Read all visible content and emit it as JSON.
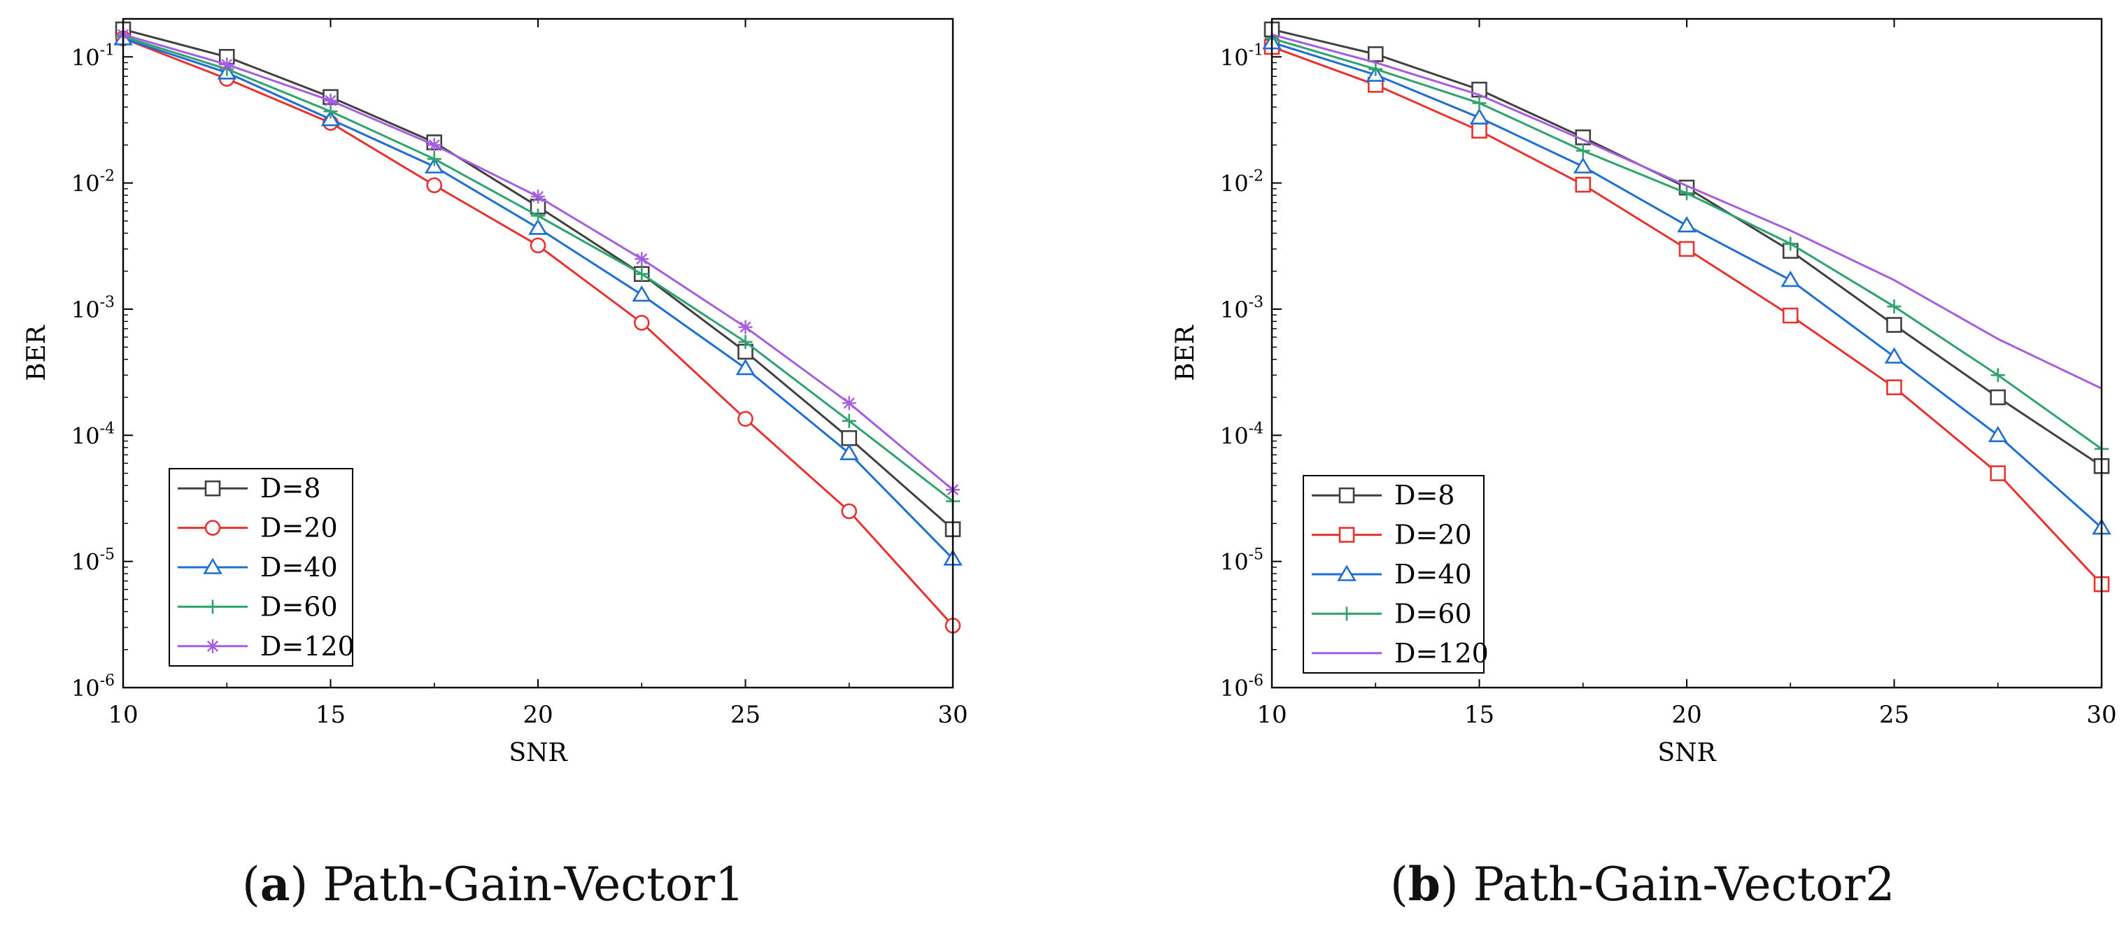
{
  "captions": [
    {
      "open": "(",
      "letter": "a",
      "close": ")",
      "text": " Path-Gain-Vector1"
    },
    {
      "open": "(",
      "letter": "b",
      "close": ")",
      "text": " Path-Gain-Vector2"
    }
  ],
  "colors": {
    "D8": "#404040",
    "D20": "#e8322e",
    "D40": "#1f6fd0",
    "D60": "#2ea36c",
    "D120": "#a55ee0"
  },
  "chart_data": [
    {
      "type": "line",
      "title": "(a) Path-Gain-Vector1",
      "xlabel": "SNR",
      "ylabel": "BER",
      "xlim": [
        10,
        30
      ],
      "ylim": [
        1e-06,
        0.2
      ],
      "yscale": "log",
      "xticks": [
        "10",
        "15",
        "20",
        "25",
        "30"
      ],
      "yticks": [
        {
          "base": "10",
          "exp": "-1"
        },
        {
          "base": "10",
          "exp": "-2"
        },
        {
          "base": "10",
          "exp": "-3"
        },
        {
          "base": "10",
          "exp": "-4"
        },
        {
          "base": "10",
          "exp": "-5"
        },
        {
          "base": "10",
          "exp": "-6"
        }
      ],
      "legend_position": "bottom-left",
      "x": [
        10,
        12.5,
        15,
        17.5,
        20,
        22.5,
        25,
        27.5,
        30
      ],
      "series": [
        {
          "name": "D=8",
          "color": "#404040",
          "marker": "square",
          "values": [
            0.165,
            0.1,
            0.048,
            0.021,
            0.0065,
            0.0019,
            0.00046,
            9.5e-05,
            1.8e-05
          ]
        },
        {
          "name": "D=20",
          "color": "#e8322e",
          "marker": "circle",
          "values": [
            0.14,
            0.067,
            0.03,
            0.0096,
            0.0032,
            0.00078,
            0.000135,
            2.5e-05,
            3.1e-06
          ]
        },
        {
          "name": "D=40",
          "color": "#1f6fd0",
          "marker": "triangle",
          "values": [
            0.14,
            0.075,
            0.032,
            0.0135,
            0.0044,
            0.0013,
            0.00034,
            7.2e-05,
            1.05e-05
          ]
        },
        {
          "name": "D=60",
          "color": "#2ea36c",
          "marker": "plus",
          "values": [
            0.145,
            0.08,
            0.037,
            0.0155,
            0.0055,
            0.0019,
            0.00055,
            0.00013,
            3e-05
          ]
        },
        {
          "name": "D=120",
          "color": "#a55ee0",
          "marker": "star",
          "values": [
            0.15,
            0.087,
            0.045,
            0.02,
            0.0078,
            0.0025,
            0.00072,
            0.00018,
            3.7e-05
          ]
        }
      ]
    },
    {
      "type": "line",
      "title": "(b) Path-Gain-Vector2",
      "xlabel": "SNR",
      "ylabel": "BER",
      "xlim": [
        10,
        30
      ],
      "ylim": [
        1e-06,
        0.2
      ],
      "yscale": "log",
      "xticks": [
        "10",
        "15",
        "20",
        "25",
        "30"
      ],
      "yticks": [
        {
          "base": "10",
          "exp": "-1"
        },
        {
          "base": "10",
          "exp": "-2"
        },
        {
          "base": "10",
          "exp": "-3"
        },
        {
          "base": "10",
          "exp": "-4"
        },
        {
          "base": "10",
          "exp": "-5"
        },
        {
          "base": "10",
          "exp": "-6"
        }
      ],
      "legend_position": "bottom-left",
      "x": [
        10,
        12.5,
        15,
        17.5,
        20,
        22.5,
        25,
        27.5,
        30
      ],
      "series": [
        {
          "name": "D=8",
          "color": "#404040",
          "marker": "square",
          "values": [
            0.165,
            0.105,
            0.055,
            0.023,
            0.0092,
            0.0029,
            0.00075,
            0.0002,
            5.7e-05
          ]
        },
        {
          "name": "D=20",
          "color": "#e8322e",
          "marker": "square",
          "values": [
            0.12,
            0.06,
            0.026,
            0.0097,
            0.003,
            0.00089,
            0.00024,
            5e-05,
            6.6e-06
          ]
        },
        {
          "name": "D=40",
          "color": "#1f6fd0",
          "marker": "triangle",
          "values": [
            0.13,
            0.072,
            0.033,
            0.0135,
            0.0046,
            0.0017,
            0.00042,
            0.0001,
            1.85e-05
          ]
        },
        {
          "name": "D=60",
          "color": "#2ea36c",
          "marker": "plus",
          "values": [
            0.14,
            0.08,
            0.043,
            0.018,
            0.0083,
            0.0033,
            0.00105,
            0.0003,
            7.8e-05
          ]
        },
        {
          "name": "D=120",
          "color": "#a55ee0",
          "marker": "none",
          "values": [
            0.15,
            0.09,
            0.05,
            0.022,
            0.0095,
            0.0042,
            0.0017,
            0.00058,
            0.000235
          ]
        }
      ]
    }
  ]
}
